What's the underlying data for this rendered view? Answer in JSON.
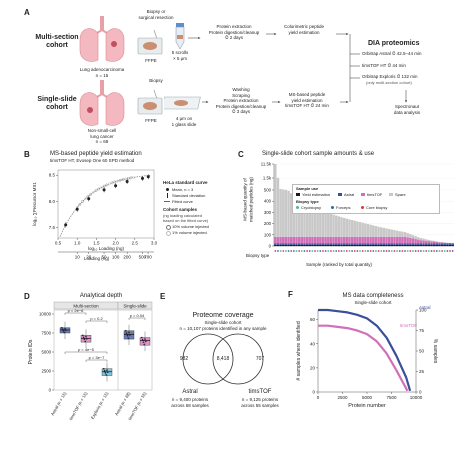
{
  "panelA": {
    "label": "A",
    "multi": {
      "cohort_title": "Multi-section\ncohort",
      "organ_caption": "Lung adenocarcinoma\nn = 15",
      "biopsy_label": "Biopsy or\nsurgical resection",
      "ffpe": "FFPE",
      "scrolls": "5 scrolls\n× 5 μm",
      "protocol": "Protein extraction\nProtein digestion/cleanup\n⏱ 2 days",
      "yield": "Colorimetric peptide\nyield estimation"
    },
    "single": {
      "cohort_title": "Single-slide\ncohort",
      "organ_caption": "Non-small-cell\nlung cancer\nn = 68",
      "biopsy_label": "Biopsy",
      "ffpe": "FFPE",
      "section": "4 μm on\n1 glass slide",
      "protocol": "Washing\nScraping\nProtein extraction\nProtein digestion/cleanup\n⏱ 3 days",
      "yield": "MS-based peptide\nyield estimation\ntimsTOF HT ⏱ 24 min"
    },
    "dia": {
      "title": "DIA proteomics",
      "inst1": "Orbitrap Astral ⏱ 42.5–44 min",
      "inst2": "timsTOF HT ⏱ 44 min",
      "inst3": "Orbitrap Exploris ⏱ 132 min",
      "inst3_note": "(only multi-section cohort)",
      "analysis": "Spectronaut\ndata analysis"
    }
  },
  "panelB": {
    "label": "B",
    "title": "MS-based peptide yield estimation",
    "subtitle": "timsTOF HT, Evosep One 60 SPD method",
    "ylabel": "log₁₀ ∑Precursor MS1",
    "xlabel_top": "log₁₀ Loading (ng)",
    "xlabel_bottom": "Loading (ng)",
    "legend": {
      "hela_title": "HeLa standard curve",
      "mean": "Mean, n = 3",
      "sd": "Standard deviation",
      "fit": "Fitted curve",
      "cohort_title": "Cohort samples",
      "cohort_note": "(ng loading calculated\nbased on the fitted curve)",
      "v10": "10% volume injected",
      "v1": "1% volume injected"
    },
    "chart_data": {
      "type": "scatter",
      "xlabel": "log₁₀ Loading (ng)",
      "ylabel": "log₁₀ ∑Precursor MS1",
      "xlim": [
        0.5,
        3.0
      ],
      "ylim": [
        7.3,
        8.6
      ],
      "x_ticks_log": [
        "0.5",
        "1.0",
        "1.5",
        "2.0",
        "2.5",
        "3.0"
      ],
      "x_ticks_ng": [
        "10",
        "20",
        "50",
        "100",
        "200",
        "500",
        "700"
      ],
      "y_ticks": [
        "7.5",
        "8.0",
        "8.5"
      ],
      "series": [
        {
          "name": "Mean, n = 3",
          "x": [
            0.7,
            1.0,
            1.3,
            1.7,
            2.0,
            2.3,
            2.7,
            2.85
          ],
          "y": [
            7.55,
            7.85,
            8.05,
            8.22,
            8.3,
            8.38,
            8.44,
            8.47
          ]
        }
      ]
    }
  },
  "panelC": {
    "label": "C",
    "title": "Single-slide cohort sample amounts & use",
    "ylabel": "MS-based quantity of\nmatched peptides (ng)",
    "xlabel": "Sample (ranked by total quantity)",
    "biopsy_type_label": "Biopsy type",
    "legend": {
      "use_title": "Sample use",
      "use": [
        "Yield estimation",
        "Astral",
        "timsTOF",
        "Spare"
      ],
      "biopsy_title": "Biopsy type",
      "biopsy": [
        "Cryobiopsy",
        "Forceps",
        "Core biopsy"
      ]
    },
    "colors": {
      "yield": "#1a1a1a",
      "astral": "#3a4f9a",
      "timstof": "#d070b8",
      "spare": "#c8c8c8",
      "cryo": "#4fb3a9",
      "forceps": "#3a63b8",
      "core": "#d93a3a"
    },
    "chart_data": {
      "type": "bar",
      "ylabel": "MS-based quantity of matched peptides (ng)",
      "xlabel": "Sample (ranked by total quantity)",
      "y_ticks": [
        "0",
        "100",
        "200",
        "300",
        "400",
        "500",
        "1.5k",
        "11.5k"
      ],
      "series": [
        {
          "name": "Spare",
          "values": [
            11500,
            1500,
            500,
            460,
            430,
            410,
            390,
            370,
            350,
            335,
            320,
            305,
            290,
            280,
            270,
            260,
            250,
            240,
            230,
            222,
            214,
            206,
            198,
            190,
            183,
            176,
            169,
            162,
            156,
            150,
            144,
            138,
            132,
            126,
            120,
            114,
            108,
            102,
            96,
            90,
            85,
            80,
            75,
            70,
            65,
            60,
            55,
            50,
            46,
            42,
            38,
            34,
            30,
            26,
            22,
            19,
            16,
            13,
            10,
            8,
            6,
            5,
            4,
            3,
            2,
            1,
            1,
            0
          ]
        },
        {
          "name": "timsTOF",
          "values": [
            60,
            60,
            60,
            60,
            60,
            60,
            60,
            60,
            60,
            60,
            60,
            60,
            60,
            60,
            60,
            60,
            60,
            60,
            60,
            60,
            60,
            60,
            60,
            60,
            60,
            60,
            60,
            60,
            60,
            60,
            60,
            60,
            60,
            60,
            60,
            60,
            60,
            60,
            60,
            60,
            60,
            60,
            60,
            60,
            60,
            60,
            60,
            60,
            60,
            60,
            55,
            50,
            45,
            40,
            35,
            30,
            28,
            25,
            22,
            20,
            18,
            15,
            12,
            10,
            8,
            6,
            5,
            4
          ]
        },
        {
          "name": "Astral",
          "values": [
            12,
            12,
            12,
            12,
            12,
            12,
            12,
            12,
            12,
            12,
            12,
            12,
            12,
            12,
            12,
            12,
            12,
            12,
            12,
            12,
            12,
            12,
            12,
            12,
            12,
            12,
            12,
            12,
            12,
            12,
            12,
            12,
            12,
            12,
            12,
            12,
            12,
            12,
            12,
            12,
            12,
            12,
            12,
            12,
            12,
            12,
            12,
            12,
            12,
            12,
            12,
            12,
            12,
            12,
            12,
            12,
            12,
            12,
            12,
            12,
            12,
            12,
            12,
            12,
            12,
            12,
            12,
            12
          ]
        },
        {
          "name": "Yield estimation",
          "values": [
            10,
            10,
            10,
            10,
            10,
            10,
            10,
            10,
            10,
            10,
            10,
            10,
            10,
            10,
            10,
            10,
            10,
            10,
            10,
            10,
            10,
            10,
            10,
            10,
            10,
            10,
            10,
            10,
            10,
            10,
            10,
            10,
            10,
            10,
            10,
            10,
            10,
            10,
            10,
            10,
            10,
            10,
            10,
            10,
            10,
            10,
            10,
            10,
            10,
            10,
            10,
            10,
            10,
            10,
            10,
            10,
            10,
            10,
            10,
            10,
            10,
            10,
            10,
            10,
            10,
            10,
            10,
            10
          ]
        }
      ]
    }
  },
  "panelD": {
    "label": "D",
    "title": "Analytical depth",
    "group1": "Multi-section",
    "group2": "Single-slide",
    "ylabel": "Protein IDs",
    "y_ticks": [
      "0",
      "2500",
      "5000",
      "7500",
      "10000"
    ],
    "pvals": [
      "p = 2e−6",
      "p = 0.2",
      "p = 4e−5",
      "p = 3e−7",
      "p = 0.04"
    ],
    "chart_data": {
      "type": "box",
      "categories": [
        "Astral (n = 15)",
        "timsTOF (n = 15)",
        "Exploris (n = 15)",
        "Astral (n = 68)",
        "timsTOF (n = 55)"
      ],
      "medians": [
        7900,
        6800,
        2400,
        7300,
        6500
      ],
      "q1": [
        7500,
        6300,
        1900,
        6700,
        5900
      ],
      "q3": [
        8200,
        7200,
        2800,
        7800,
        6900
      ],
      "colors": [
        "#3a4f9a",
        "#d070b8",
        "#4fb3d6",
        "#3a4f9a",
        "#d070b8"
      ]
    }
  },
  "panelE": {
    "label": "E",
    "title": "Proteome coverage",
    "subtitle1": "Single-slide cohort",
    "subtitle2": "n = 10,107 proteins identified in any sample",
    "left_only": "982",
    "overlap": "8,418",
    "right_only": "707",
    "left_name": "Astral",
    "left_caption": "n = 9,400 proteins\nacross 68 samples",
    "right_name": "timsTOF",
    "right_caption": "n = 9,125 proteins\nacross 55 samples"
  },
  "panelF": {
    "label": "F",
    "title": "MS data completeness",
    "subtitle": "Single-slide cohort",
    "ylabel_left": "# samples where identified",
    "ylabel_right": "% samples",
    "xlabel": "Protein number",
    "legend_astral": "Astral",
    "legend_timstof": "timsTOF",
    "x_ticks": [
      "0",
      "2500",
      "5000",
      "7500",
      "10000"
    ],
    "yl_ticks": [
      "0",
      "20",
      "40",
      "60"
    ],
    "yr_ticks": [
      "0",
      "25",
      "50",
      "75",
      "100"
    ],
    "chart_data": {
      "type": "line",
      "xlabel": "Protein number",
      "ylabel": "# samples where identified",
      "xlim": [
        0,
        10000
      ],
      "ylim": [
        0,
        68
      ],
      "series": [
        {
          "name": "Astral",
          "x": [
            0,
            1000,
            2000,
            3000,
            4000,
            5000,
            6000,
            7000,
            8000,
            9000,
            9400
          ],
          "y": [
            68,
            68,
            67,
            66,
            64,
            61,
            55,
            45,
            30,
            12,
            1
          ]
        },
        {
          "name": "timsTOF",
          "x": [
            0,
            1000,
            2000,
            3000,
            4000,
            5000,
            6000,
            7000,
            8000,
            9125
          ],
          "y": [
            55,
            55,
            54,
            53,
            51,
            48,
            42,
            32,
            18,
            1
          ]
        }
      ]
    }
  }
}
